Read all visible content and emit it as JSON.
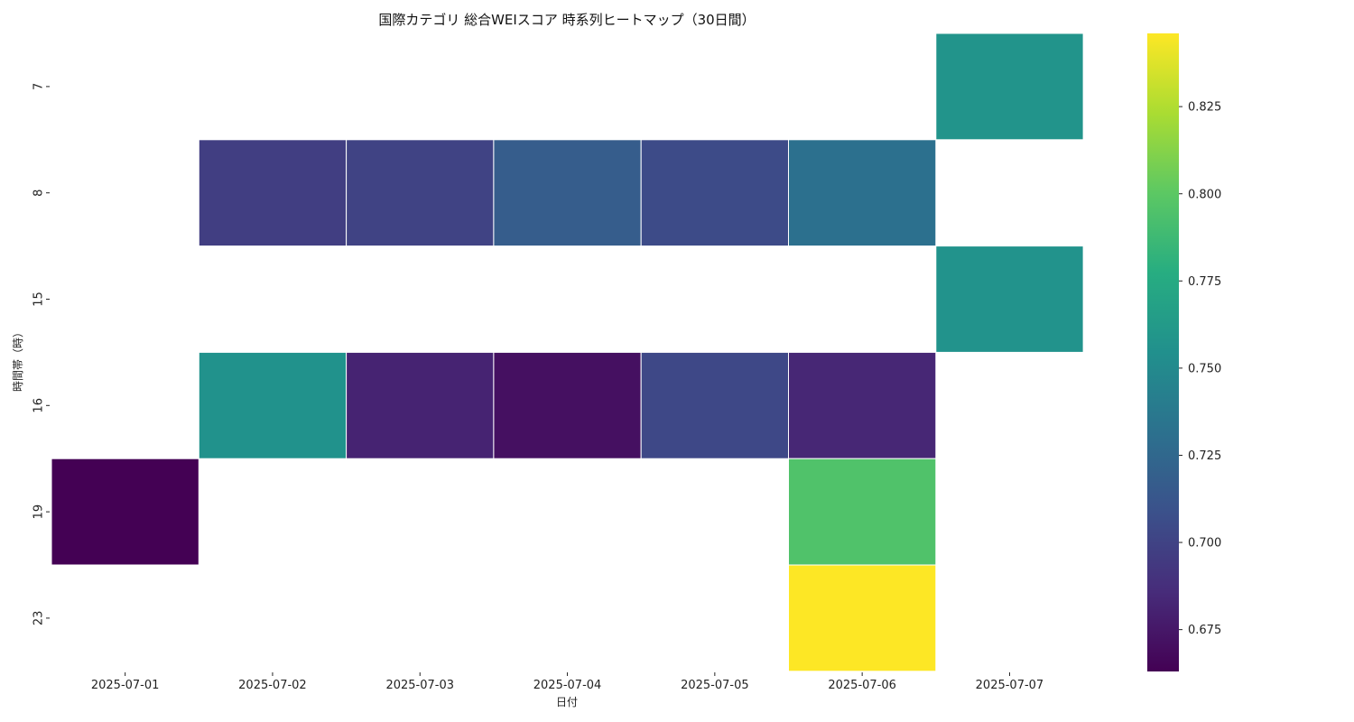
{
  "chart_data": {
    "type": "heatmap",
    "title": "国際カテゴリ 総合WEIスコア 時系列ヒートマップ（30日間）",
    "xlabel": "日付",
    "ylabel": "時間帯（時）",
    "x_categories": [
      "2025-07-01",
      "2025-07-02",
      "2025-07-03",
      "2025-07-04",
      "2025-07-05",
      "2025-07-06",
      "2025-07-07"
    ],
    "y_categories": [
      "7",
      "8",
      "15",
      "16",
      "19",
      "23"
    ],
    "values": [
      [
        null,
        null,
        null,
        null,
        null,
        null,
        0.758
      ],
      [
        null,
        0.697,
        0.7,
        0.717,
        0.705,
        0.731,
        null
      ],
      [
        null,
        null,
        null,
        null,
        null,
        null,
        0.757
      ],
      [
        null,
        0.756,
        0.681,
        0.671,
        0.703,
        0.683,
        null
      ],
      [
        0.663,
        null,
        null,
        null,
        null,
        0.795,
        null
      ],
      [
        null,
        null,
        null,
        null,
        null,
        0.846,
        null
      ]
    ],
    "colormap": "viridis",
    "vmin": 0.663,
    "vmax": 0.846,
    "colorbar_ticks": [
      "0.675",
      "0.700",
      "0.725",
      "0.750",
      "0.775",
      "0.800",
      "0.825"
    ],
    "grid": false
  }
}
